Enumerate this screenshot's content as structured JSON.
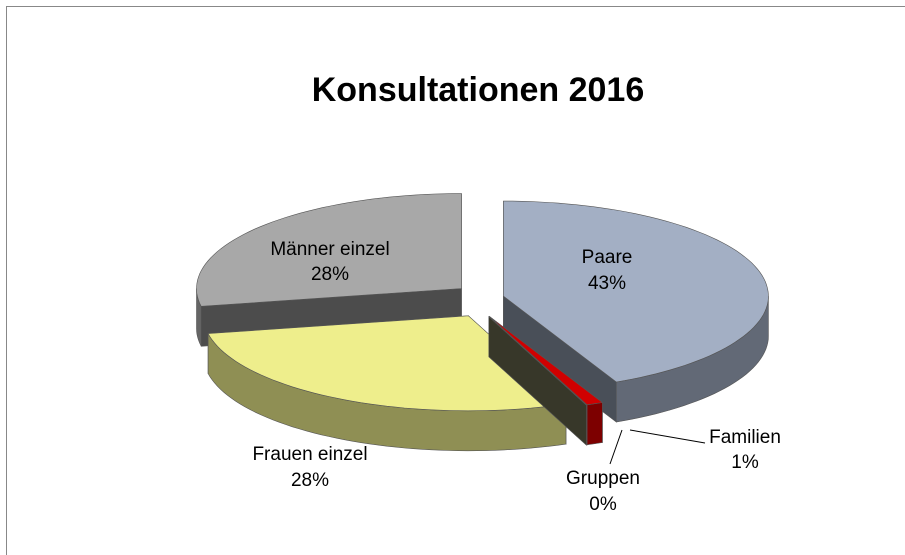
{
  "chart_data": {
    "type": "pie",
    "title": "Konsultationen 2016",
    "categories": [
      "Paare",
      "Familien",
      "Gruppen",
      "Frauen einzel",
      "Männer einzel"
    ],
    "values": [
      43,
      1,
      0,
      28,
      28
    ],
    "value_labels": [
      "43%",
      "1%",
      "0%",
      "28%",
      "28%"
    ],
    "colors": [
      "#a3afc4",
      "#d00000",
      "#7a7a5c",
      "#eeee8c",
      "#a8a8a8"
    ]
  }
}
